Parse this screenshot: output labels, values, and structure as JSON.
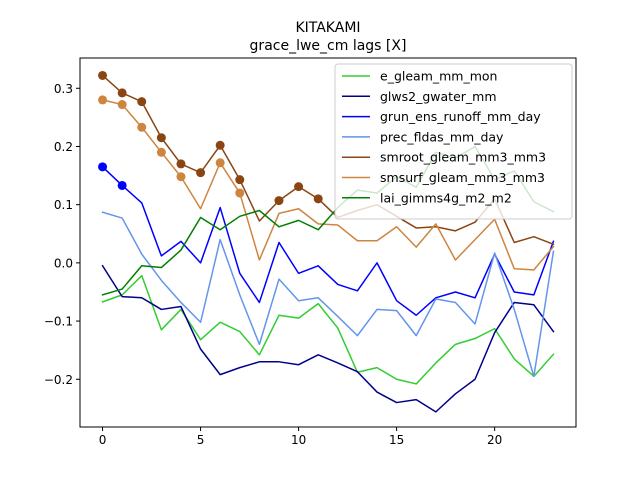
{
  "chart_data": {
    "type": "line",
    "title": "KITAKAMI",
    "subtitle": "grace_lwe_cm lags [X]",
    "xlabel": "",
    "ylabel": "",
    "xlim": [
      -1.15,
      24.15
    ],
    "ylim": [
      -0.282,
      0.352
    ],
    "xticks": [
      0,
      5,
      10,
      15,
      20
    ],
    "yticks": [
      -0.2,
      -0.1,
      0.0,
      0.1,
      0.2,
      0.3
    ],
    "ytick_labels": [
      "−0.2",
      "−0.1",
      "0.0",
      "0.1",
      "0.2",
      "0.3"
    ],
    "grid": false,
    "legend_position": "top-right",
    "x": [
      0,
      1,
      2,
      3,
      4,
      5,
      6,
      7,
      8,
      9,
      10,
      11,
      12,
      13,
      14,
      15,
      16,
      17,
      18,
      19,
      20,
      21,
      22,
      23
    ],
    "series": [
      {
        "name": "e_gleam_mm_mon",
        "color": "#32cd32",
        "values": [
          -0.067,
          -0.055,
          -0.022,
          -0.115,
          -0.08,
          -0.132,
          -0.102,
          -0.118,
          -0.158,
          -0.09,
          -0.095,
          -0.07,
          -0.112,
          -0.188,
          -0.18,
          -0.2,
          -0.208,
          -0.172,
          -0.14,
          -0.13,
          -0.113,
          -0.165,
          -0.195,
          -0.157
        ],
        "markers": []
      },
      {
        "name": "glws2_gwater_mm",
        "color": "#00008b",
        "values": [
          -0.005,
          -0.058,
          -0.06,
          -0.08,
          -0.075,
          -0.148,
          -0.192,
          -0.18,
          -0.17,
          -0.17,
          -0.175,
          -0.158,
          -0.172,
          -0.187,
          -0.222,
          -0.24,
          -0.235,
          -0.256,
          -0.225,
          -0.2,
          -0.12,
          -0.068,
          -0.072,
          -0.118
        ],
        "markers": []
      },
      {
        "name": "grun_ens_runoff_mm_day",
        "color": "#0000ff",
        "values": [
          0.165,
          0.133,
          0.103,
          0.012,
          0.037,
          0.0,
          0.095,
          -0.018,
          -0.068,
          0.035,
          -0.018,
          -0.005,
          -0.037,
          -0.048,
          0.0,
          -0.065,
          -0.09,
          -0.06,
          -0.05,
          -0.06,
          0.015,
          -0.05,
          -0.055,
          0.037
        ],
        "markers": [
          0,
          1
        ]
      },
      {
        "name": "prec_fldas_mm_day",
        "color": "#6495ed",
        "values": [
          0.087,
          0.077,
          0.015,
          -0.03,
          -0.068,
          -0.102,
          0.04,
          -0.055,
          -0.14,
          -0.028,
          -0.065,
          -0.06,
          -0.092,
          -0.125,
          -0.08,
          -0.082,
          -0.125,
          -0.062,
          -0.068,
          -0.105,
          0.017,
          -0.08,
          -0.195,
          0.02
        ],
        "markers": []
      },
      {
        "name": "smroot_gleam_mm3_mm3",
        "color": "#8b4513",
        "values": [
          0.322,
          0.292,
          0.277,
          0.215,
          0.17,
          0.155,
          0.202,
          0.143,
          0.072,
          0.107,
          0.131,
          0.11,
          0.078,
          0.09,
          0.1,
          0.08,
          0.06,
          0.062,
          0.055,
          0.07,
          0.11,
          0.035,
          0.045,
          0.032
        ],
        "markers": [
          0,
          1,
          2,
          3,
          4,
          5,
          6,
          7,
          9,
          10,
          11
        ]
      },
      {
        "name": "smsurf_gleam_mm3_mm3",
        "color": "#cd853f",
        "values": [
          0.28,
          0.272,
          0.233,
          0.19,
          0.148,
          0.093,
          0.172,
          0.12,
          0.005,
          0.085,
          0.093,
          0.067,
          0.065,
          0.038,
          0.038,
          0.062,
          0.027,
          0.067,
          0.005,
          0.04,
          0.075,
          -0.01,
          -0.012,
          0.028
        ],
        "markers": [
          0,
          1,
          2,
          3,
          4,
          6,
          7
        ]
      },
      {
        "name": "lai_gimms4g_m2_m2",
        "color": "#008000",
        "values": [
          -0.055,
          -0.045,
          -0.005,
          -0.008,
          0.022,
          0.078,
          0.057,
          0.08,
          0.09,
          0.062,
          0.073,
          0.057,
          0.095,
          0.125,
          0.12,
          0.148,
          0.13,
          0.19,
          0.18,
          0.2,
          0.143,
          0.158,
          0.105,
          0.088
        ],
        "markers": []
      }
    ]
  }
}
